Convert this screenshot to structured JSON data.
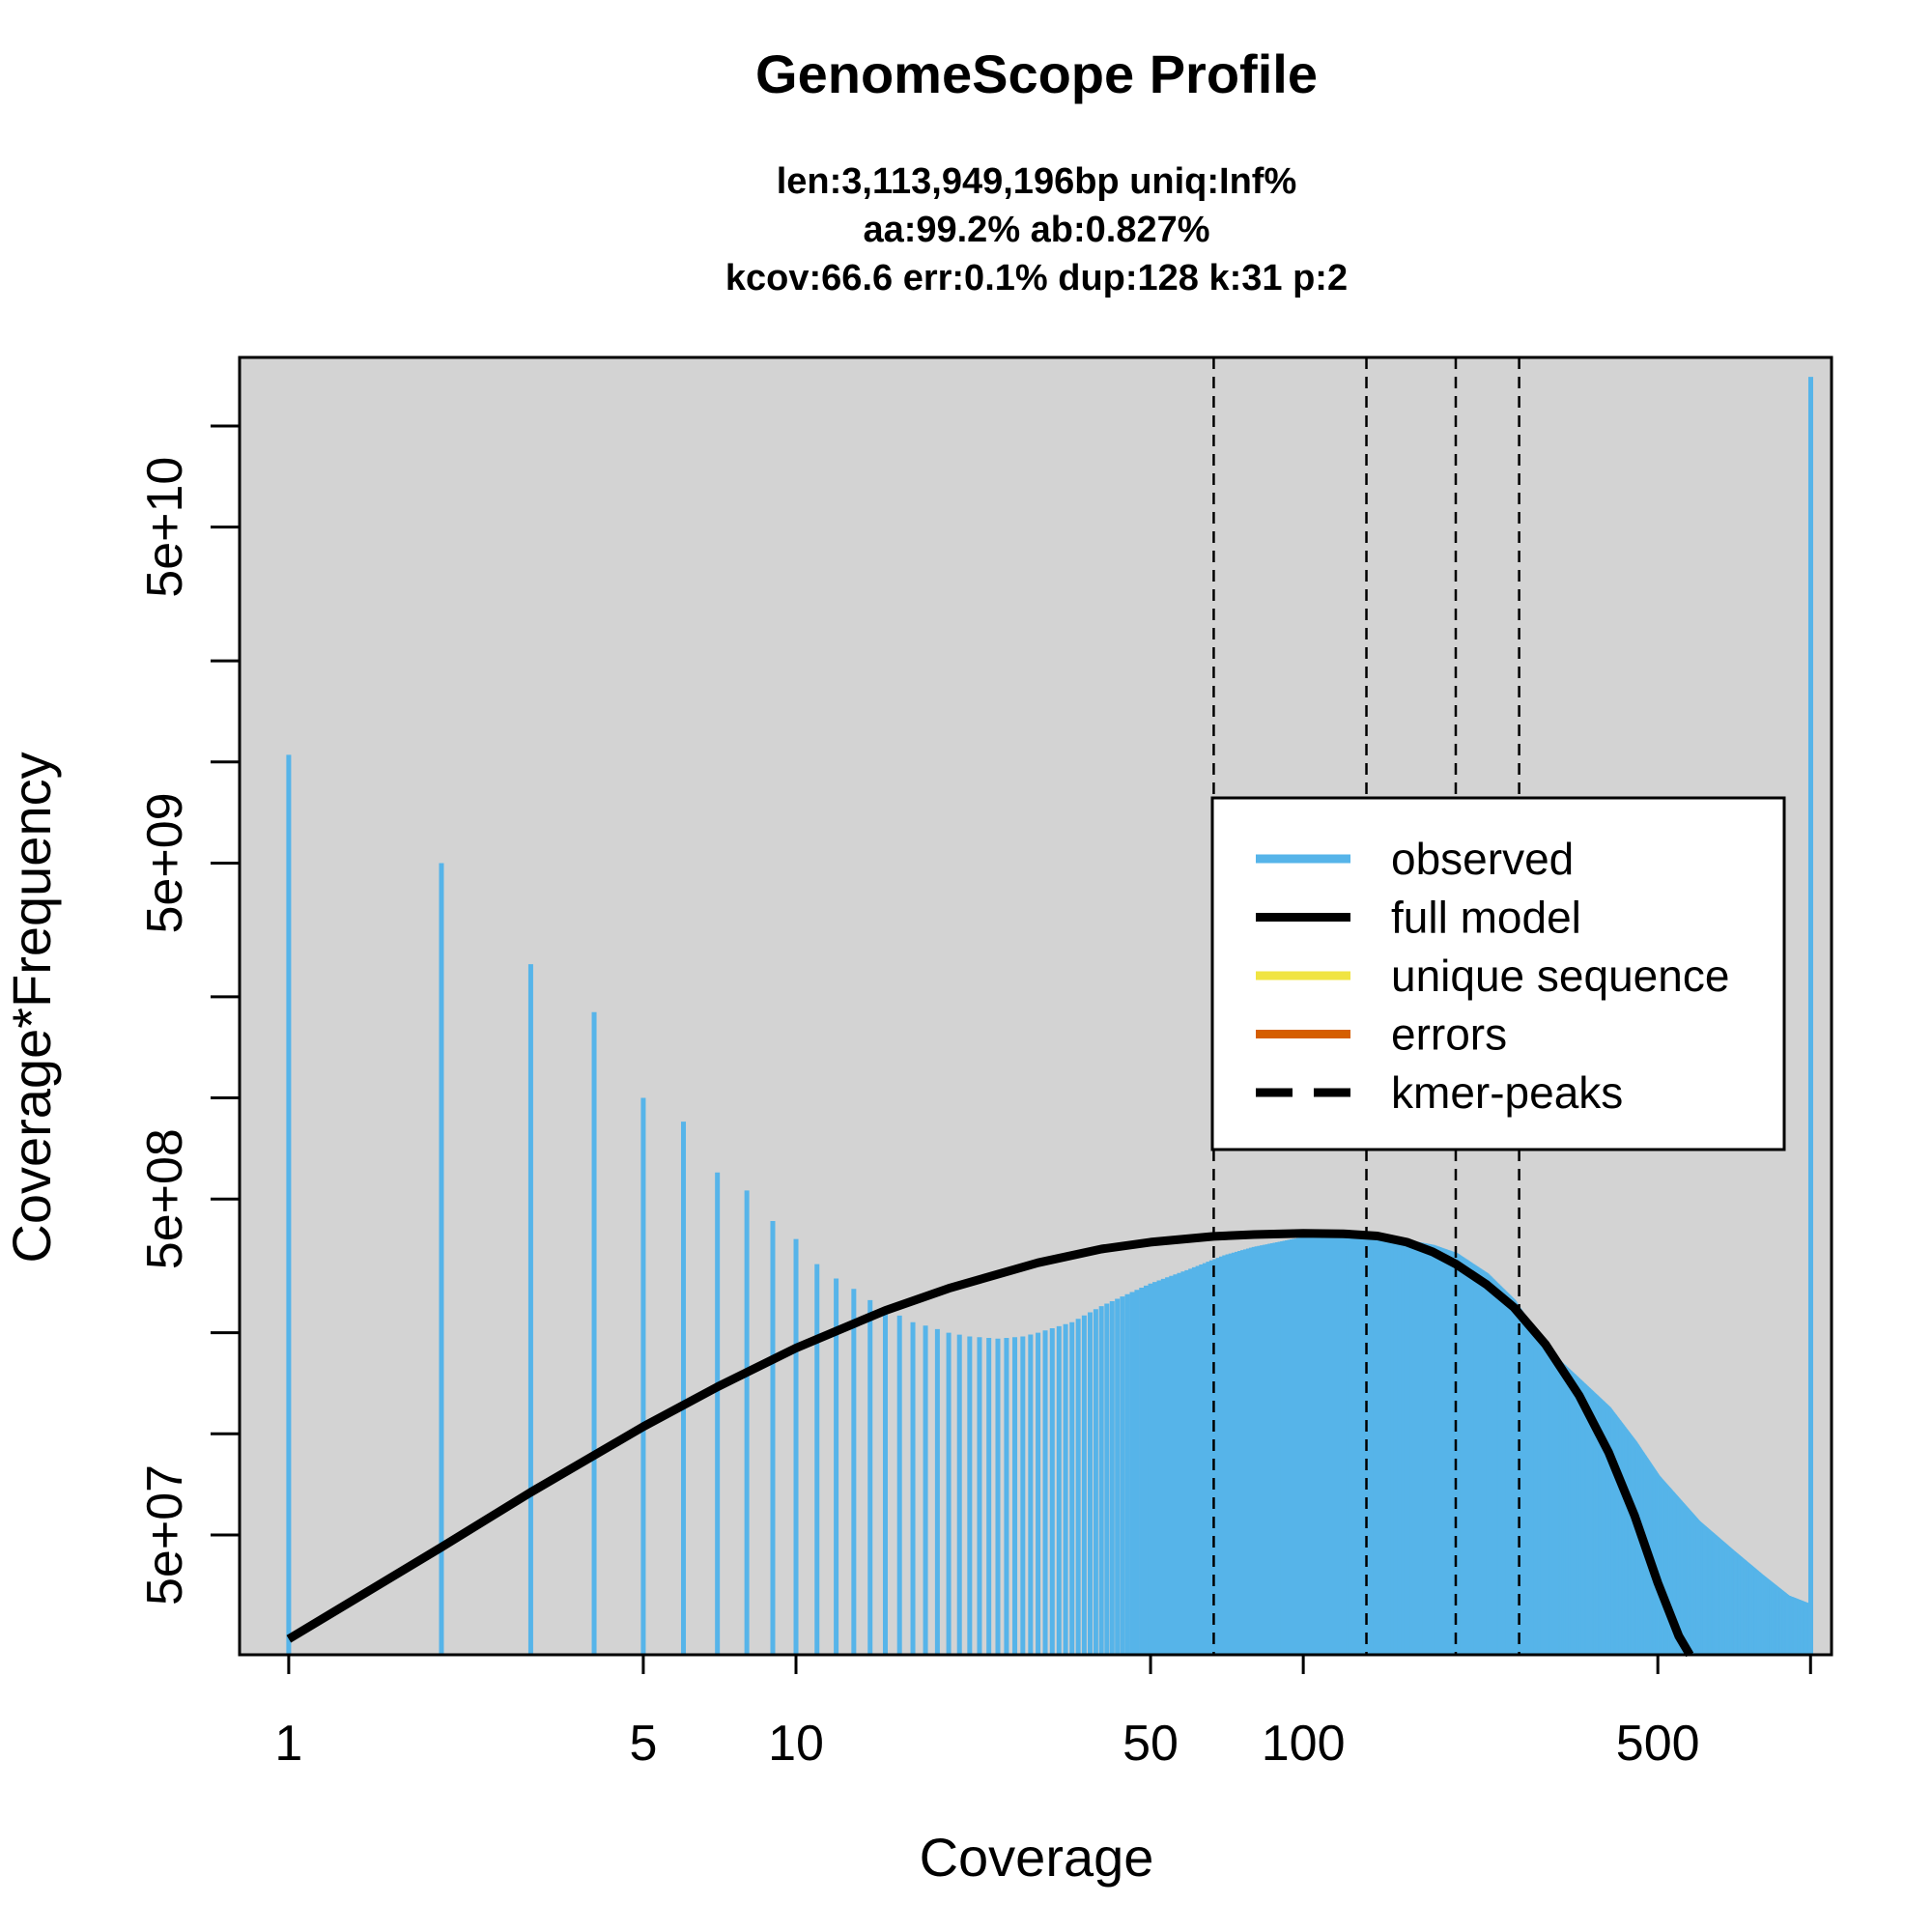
{
  "chart_data": {
    "type": "bar",
    "title": "GenomeScope Profile",
    "subtitle_lines": [
      "len:3,113,949,196bp uniq:Inf%",
      "aa:99.2% ab:0.827%",
      "kcov:66.6 err:0.1%  dup:128  k:31 p:2"
    ],
    "xlabel": "Coverage",
    "ylabel": "Coverage*Frequency",
    "x_scale": "log",
    "y_scale": "log",
    "xlim": [
      0.8,
      1100
    ],
    "ylim": [
      22000000,
      160000000000
    ],
    "x_ticks": [
      {
        "value": 1,
        "label": "1"
      },
      {
        "value": 5,
        "label": "5"
      },
      {
        "value": 10,
        "label": "10"
      },
      {
        "value": 50,
        "label": "50"
      },
      {
        "value": 100,
        "label": "100"
      },
      {
        "value": 500,
        "label": "500"
      },
      {
        "value": 1000,
        "label": ""
      }
    ],
    "y_ticks": [
      {
        "value": 20000000,
        "label": ""
      },
      {
        "value": 50000000,
        "label": "5e+07"
      },
      {
        "value": 100000000,
        "label": ""
      },
      {
        "value": 200000000,
        "label": ""
      },
      {
        "value": 500000000,
        "label": "5e+08"
      },
      {
        "value": 1000000000,
        "label": ""
      },
      {
        "value": 2000000000,
        "label": ""
      },
      {
        "value": 5000000000,
        "label": "5e+09"
      },
      {
        "value": 10000000000,
        "label": ""
      },
      {
        "value": 20000000000,
        "label": ""
      },
      {
        "value": 50000000000,
        "label": "5e+10"
      },
      {
        "value": 100000000000,
        "label": ""
      }
    ],
    "kmer_peaks": [
      66.6,
      133.2,
      199.8,
      266.4
    ],
    "series": [
      {
        "name": "observed",
        "color": "#56B4E9",
        "points": [
          [
            1,
            10500000000
          ],
          [
            2,
            5000000000
          ],
          [
            3,
            2500000000
          ],
          [
            4,
            1800000000
          ],
          [
            5,
            1000000000
          ],
          [
            6,
            850000000
          ],
          [
            7,
            600000000
          ],
          [
            8,
            530000000
          ],
          [
            9,
            430000000
          ],
          [
            10,
            380000000
          ],
          [
            11,
            320000000
          ],
          [
            12,
            290000000
          ],
          [
            13,
            270000000
          ],
          [
            14,
            250000000
          ],
          [
            15,
            235000000
          ],
          [
            16,
            225000000
          ],
          [
            17,
            215000000
          ],
          [
            18,
            210000000
          ],
          [
            19,
            205000000
          ],
          [
            20,
            200000000
          ],
          [
            22,
            195000000
          ],
          [
            25,
            192000000
          ],
          [
            28,
            195000000
          ],
          [
            30,
            200000000
          ],
          [
            35,
            215000000
          ],
          [
            40,
            240000000
          ],
          [
            50,
            280000000
          ],
          [
            60,
            310000000
          ],
          [
            70,
            340000000
          ],
          [
            80,
            360000000
          ],
          [
            100,
            385000000
          ],
          [
            120,
            390000000
          ],
          [
            150,
            385000000
          ],
          [
            180,
            365000000
          ],
          [
            200,
            345000000
          ],
          [
            230,
            300000000
          ],
          [
            260,
            250000000
          ],
          [
            300,
            180000000
          ],
          [
            350,
            145000000
          ],
          [
            400,
            120000000
          ],
          [
            450,
            95000000
          ],
          [
            500,
            75000000
          ],
          [
            600,
            55000000
          ],
          [
            700,
            45000000
          ],
          [
            800,
            38000000
          ],
          [
            900,
            33000000
          ],
          [
            1000,
            31000000
          ],
          [
            1001,
            140000000000
          ]
        ]
      },
      {
        "name": "full model",
        "color": "#000000",
        "points": [
          [
            1,
            24500000
          ],
          [
            2,
            46000000
          ],
          [
            3,
            67000000
          ],
          [
            5,
            105000000
          ],
          [
            7,
            138000000
          ],
          [
            10,
            180000000
          ],
          [
            15,
            233000000
          ],
          [
            20,
            271000000
          ],
          [
            30,
            323000000
          ],
          [
            40,
            355000000
          ],
          [
            50,
            372000000
          ],
          [
            66.6,
            387000000
          ],
          [
            80,
            392000000
          ],
          [
            100,
            395000000
          ],
          [
            120,
            394000000
          ],
          [
            140,
            388000000
          ],
          [
            160,
            372000000
          ],
          [
            180,
            348000000
          ],
          [
            200,
            320000000
          ],
          [
            230,
            278000000
          ],
          [
            260,
            238000000
          ],
          [
            300,
            185000000
          ],
          [
            350,
            130000000
          ],
          [
            400,
            88000000
          ],
          [
            450,
            57000000
          ],
          [
            500,
            36000000
          ],
          [
            550,
            25000000
          ],
          [
            600,
            20000000
          ]
        ]
      },
      {
        "name": "unique sequence",
        "color": "#F0E442",
        "points": []
      },
      {
        "name": "errors",
        "color": "#D55E00",
        "points": []
      }
    ],
    "legend": {
      "position": "right",
      "entries": [
        {
          "label": "observed",
          "color": "#56B4E9",
          "style": "solid"
        },
        {
          "label": "full model",
          "color": "#000000",
          "style": "solid"
        },
        {
          "label": "unique sequence",
          "color": "#F0E442",
          "style": "solid"
        },
        {
          "label": "errors",
          "color": "#D55E00",
          "style": "solid"
        },
        {
          "label": "kmer-peaks",
          "color": "#000000",
          "style": "dashed"
        }
      ]
    },
    "plot_background": "#D3D3D3"
  }
}
